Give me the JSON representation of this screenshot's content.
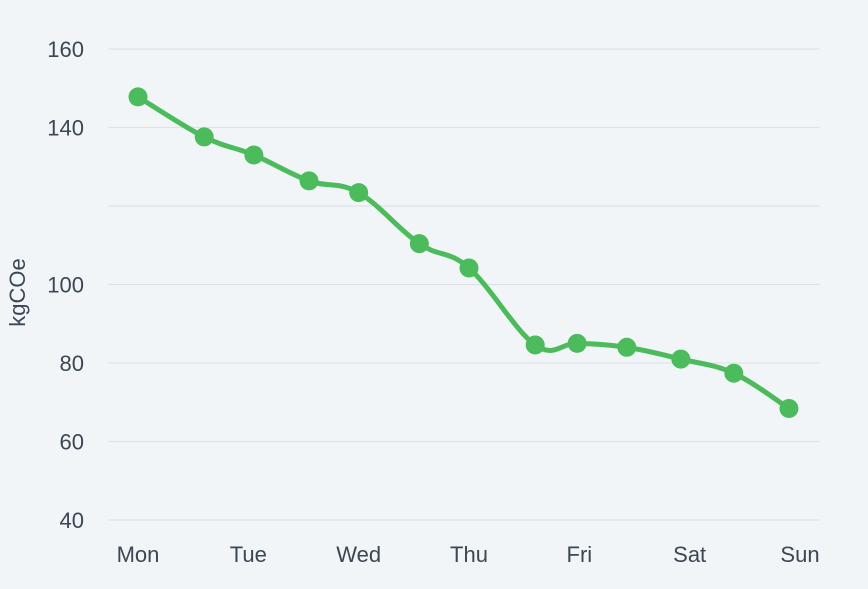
{
  "chart_data": {
    "type": "line",
    "title": "",
    "xlabel": "",
    "ylabel": "kgCOe",
    "x_tick_labels": [
      "Mon",
      "Tue",
      "Wed",
      "Thu",
      "Fri",
      "Sat",
      "Sun"
    ],
    "y_ticks": [
      40,
      60,
      80,
      100,
      120,
      140,
      160
    ],
    "y_tick_labels": [
      "40",
      "60",
      "80",
      "100",
      "",
      "140",
      "160"
    ],
    "ylim": [
      40,
      160
    ],
    "xlim": [
      0,
      6
    ],
    "grid": true,
    "legend": "none",
    "series": [
      {
        "color": "#4cbb5c",
        "points": [
          {
            "x": 0.0,
            "y": 147.8
          },
          {
            "x": 0.6,
            "y": 137.6
          },
          {
            "x": 1.05,
            "y": 133.0
          },
          {
            "x": 1.55,
            "y": 126.4
          },
          {
            "x": 2.0,
            "y": 123.4
          },
          {
            "x": 2.55,
            "y": 110.4
          },
          {
            "x": 3.0,
            "y": 104.2
          },
          {
            "x": 3.6,
            "y": 84.6
          },
          {
            "x": 3.98,
            "y": 85.0
          },
          {
            "x": 4.43,
            "y": 84.0
          },
          {
            "x": 4.92,
            "y": 81.0
          },
          {
            "x": 5.4,
            "y": 77.4
          },
          {
            "x": 5.9,
            "y": 68.4
          }
        ]
      }
    ]
  }
}
